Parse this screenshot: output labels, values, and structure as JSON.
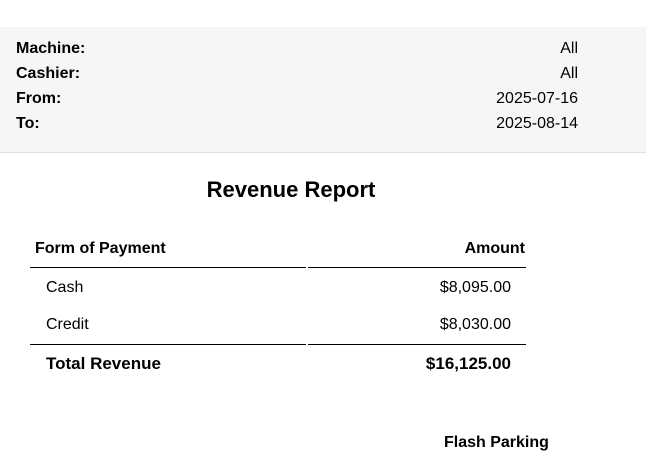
{
  "filters": [
    {
      "label": "Machine:",
      "value": "All"
    },
    {
      "label": "Cashier:",
      "value": "All"
    },
    {
      "label": "From:",
      "value": "2025-07-16"
    },
    {
      "label": "To:",
      "value": "2025-08-14"
    }
  ],
  "report": {
    "title": "Revenue Report",
    "columns": {
      "payment": "Form of Payment",
      "amount": "Amount"
    },
    "rows": [
      {
        "payment": "Cash",
        "amount": "$8,095.00"
      },
      {
        "payment": "Credit",
        "amount": "$8,030.00"
      }
    ],
    "total": {
      "label": "Total Revenue",
      "amount": "$16,125.00"
    }
  },
  "footer": {
    "brand": "Flash Parking"
  }
}
